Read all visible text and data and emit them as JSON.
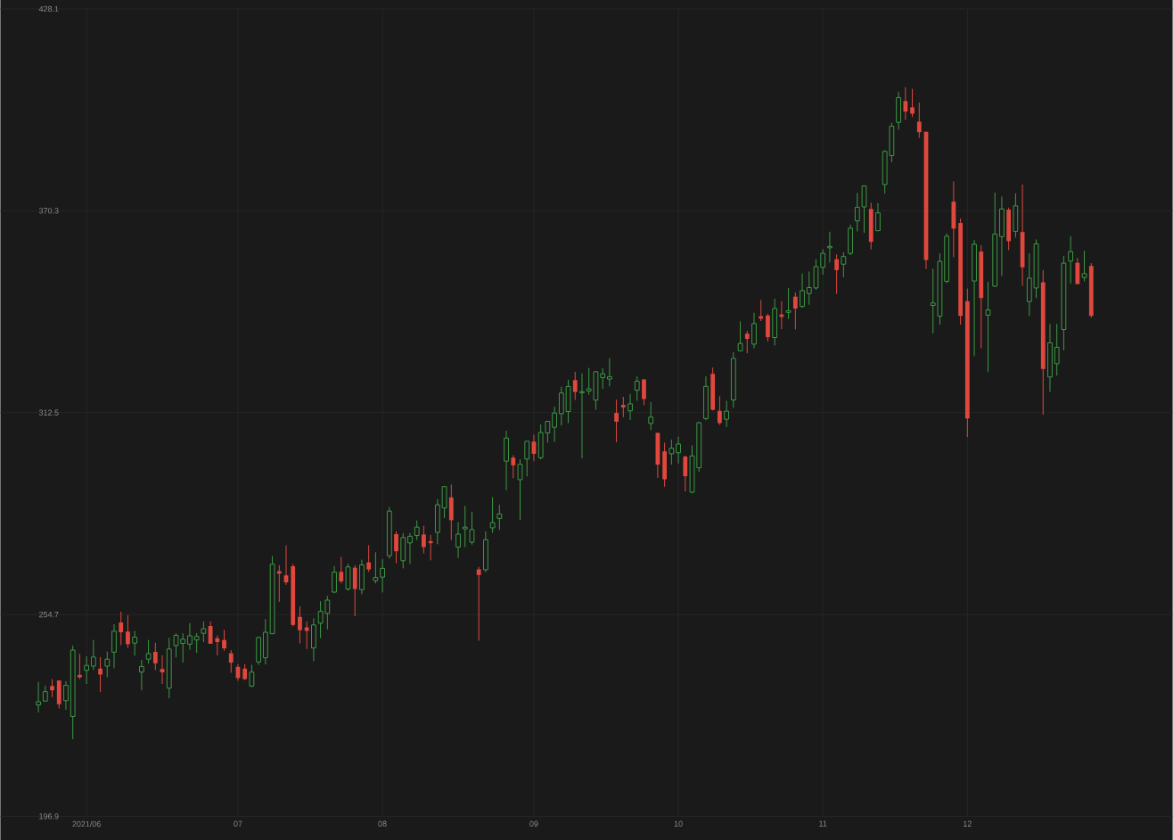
{
  "chart_data": {
    "type": "candlestick",
    "categories": [
      null,
      null,
      null,
      null,
      null,
      null,
      null,
      "2021/06",
      null,
      null,
      null,
      null,
      null,
      null,
      null,
      null,
      null,
      null,
      null,
      null,
      null,
      null,
      null,
      null,
      null,
      null,
      null,
      null,
      null,
      "07",
      null,
      null,
      null,
      null,
      null,
      null,
      null,
      null,
      null,
      null,
      null,
      null,
      null,
      null,
      null,
      null,
      null,
      null,
      null,
      null,
      "08",
      null,
      null,
      null,
      null,
      null,
      null,
      null,
      null,
      null,
      null,
      null,
      null,
      null,
      null,
      null,
      null,
      null,
      null,
      null,
      null,
      null,
      "09",
      null,
      null,
      null,
      null,
      null,
      null,
      null,
      null,
      null,
      null,
      null,
      null,
      null,
      null,
      null,
      null,
      null,
      null,
      null,
      null,
      "10",
      null,
      null,
      null,
      null,
      null,
      null,
      null,
      null,
      null,
      null,
      null,
      null,
      null,
      null,
      null,
      null,
      null,
      null,
      null,
      null,
      "11",
      null,
      null,
      null,
      null,
      null,
      null,
      null,
      null,
      null,
      null,
      null,
      null,
      null,
      null,
      null,
      null,
      null,
      null,
      null,
      null,
      "12",
      null,
      null,
      null,
      null,
      null,
      null,
      null,
      null,
      null,
      null,
      null,
      null,
      null,
      null,
      null,
      null,
      null,
      null
    ],
    "ohlc": [
      [
        228.8,
        235.4,
        226.6,
        229.7
      ],
      [
        229.9,
        234.3,
        229.9,
        232.6
      ],
      [
        234.2,
        236.2,
        231.0,
        233.0
      ],
      [
        235.8,
        235.8,
        227.8,
        229.0
      ],
      [
        230.0,
        235.6,
        227.4,
        234.4
      ],
      [
        225.5,
        245.8,
        219.0,
        244.5
      ],
      [
        237.4,
        243.4,
        236.2,
        236.7
      ],
      [
        238.7,
        242.7,
        234.8,
        240.1
      ],
      [
        239.9,
        247.4,
        238.8,
        242.5
      ],
      [
        239.2,
        242.5,
        232.5,
        237.5
      ],
      [
        239.9,
        244.1,
        236.7,
        241.9
      ],
      [
        243.9,
        251.9,
        239.3,
        249.9
      ],
      [
        252.4,
        255.5,
        245.9,
        249.6
      ],
      [
        249.8,
        254.5,
        245.1,
        246.2
      ],
      [
        246.5,
        250.0,
        242.9,
        248.2
      ],
      [
        238.2,
        241.7,
        233.0,
        239.8
      ],
      [
        241.9,
        247.4,
        240.6,
        243.5
      ],
      [
        244.0,
        246.6,
        238.8,
        240.7
      ],
      [
        239.1,
        243.0,
        234.8,
        238.1
      ],
      [
        233.6,
        248.0,
        230.7,
        244.8
      ],
      [
        245.8,
        249.3,
        242.4,
        248.7
      ],
      [
        246.4,
        249.3,
        240.9,
        247.6
      ],
      [
        246.2,
        252.2,
        244.6,
        248.6
      ],
      [
        247.4,
        249.4,
        243.7,
        248.4
      ],
      [
        249.3,
        252.7,
        246.8,
        250.6
      ],
      [
        251.4,
        252.7,
        246.3,
        246.3
      ],
      [
        247.9,
        248.7,
        243.0,
        246.8
      ],
      [
        247.4,
        250.3,
        244.3,
        245.0
      ],
      [
        243.6,
        244.5,
        238.0,
        240.9
      ],
      [
        239.7,
        240.5,
        235.7,
        236.5
      ],
      [
        239.2,
        240.5,
        235.9,
        236.2
      ],
      [
        234.2,
        240.3,
        233.9,
        238.2
      ],
      [
        241.1,
        248.4,
        240.3,
        248.1
      ],
      [
        242.3,
        253.4,
        240.4,
        249.6
      ],
      [
        249.2,
        271.4,
        249.2,
        269.1
      ],
      [
        267.1,
        268.8,
        258.3,
        266.4
      ],
      [
        265.9,
        274.5,
        263.2,
        263.9
      ],
      [
        268.5,
        269.2,
        251.3,
        251.7
      ],
      [
        254.0,
        257.0,
        246.4,
        250.2
      ],
      [
        251.0,
        252.7,
        244.8,
        250.0
      ],
      [
        245.1,
        253.6,
        241.3,
        251.7
      ],
      [
        252.2,
        258.5,
        247.9,
        255.6
      ],
      [
        255.0,
        260.0,
        250.4,
        258.8
      ],
      [
        261.1,
        268.6,
        260.8,
        266.8
      ],
      [
        266.9,
        271.2,
        263.6,
        264.2
      ],
      [
        262.0,
        269.2,
        261.5,
        268.3
      ],
      [
        268.1,
        268.8,
        254.2,
        262.0
      ],
      [
        261.8,
        270.4,
        260.5,
        268.9
      ],
      [
        269.6,
        274.5,
        266.9,
        267.6
      ],
      [
        264.4,
        272.5,
        263.6,
        265.3
      ],
      [
        265.4,
        270.6,
        261.0,
        267.9
      ],
      [
        271.5,
        285.5,
        270.7,
        284.3
      ],
      [
        277.7,
        278.5,
        269.4,
        272.8
      ],
      [
        270.1,
        278.0,
        267.9,
        276.7
      ],
      [
        275.2,
        278.0,
        269.2,
        277.1
      ],
      [
        277.3,
        281.6,
        276.0,
        279.7
      ],
      [
        277.6,
        280.1,
        272.2,
        274.0
      ],
      [
        275.7,
        277.5,
        270.2,
        275.1
      ],
      [
        278.2,
        287.7,
        274.8,
        286.1
      ],
      [
        285.2,
        291.5,
        282.3,
        291.3
      ],
      [
        288.2,
        291.9,
        276.0,
        281.7
      ],
      [
        274.0,
        281.1,
        270.9,
        277.7
      ],
      [
        279.2,
        285.8,
        274.0,
        279.7
      ],
      [
        275.4,
        284.1,
        274.7,
        279.0
      ],
      [
        267.6,
        268.3,
        247.2,
        266.0
      ],
      [
        267.5,
        278.5,
        266.8,
        276.1
      ],
      [
        279.5,
        288.3,
        278.1,
        281.0
      ],
      [
        282.2,
        286.1,
        278.9,
        283.5
      ],
      [
        298.6,
        307.3,
        290.3,
        305.2
      ],
      [
        299.6,
        300.3,
        293.7,
        297.4
      ],
      [
        293.3,
        299.1,
        281.8,
        297.7
      ],
      [
        299.2,
        304.3,
        294.2,
        304.3
      ],
      [
        304.2,
        306.2,
        298.6,
        300.7
      ],
      [
        299.6,
        309.1,
        299.1,
        306.8
      ],
      [
        306.7,
        310.0,
        303.9,
        310.0
      ],
      [
        308.3,
        314.2,
        304.1,
        312.4
      ],
      [
        312.2,
        319.9,
        308.8,
        318.1
      ],
      [
        312.8,
        321.9,
        309.5,
        320.0
      ],
      [
        321.8,
        324.2,
        316.1,
        318.4
      ],
      [
        318.2,
        323.7,
        299.4,
        318.5
      ],
      [
        318.7,
        325.3,
        317.6,
        319.3
      ],
      [
        316.1,
        324.4,
        313.3,
        324.2
      ],
      [
        322.5,
        325.2,
        319.3,
        323.6
      ],
      [
        322.1,
        328.1,
        320.0,
        322.8
      ],
      [
        312.4,
        316.2,
        304.0,
        309.9
      ],
      [
        314.7,
        317.0,
        311.2,
        314.0
      ],
      [
        313.0,
        317.8,
        310.4,
        315.0
      ],
      [
        318.9,
        322.9,
        315.9,
        321.5
      ],
      [
        322.0,
        322.1,
        314.6,
        316.4
      ],
      [
        309.4,
        315.5,
        307.5,
        311.2
      ],
      [
        306.7,
        306.7,
        293.8,
        297.6
      ],
      [
        301.4,
        303.9,
        291.3,
        293.4
      ],
      [
        300.7,
        304.8,
        297.6,
        302.3
      ],
      [
        301.0,
        305.6,
        297.9,
        303.5
      ],
      [
        299.9,
        300.2,
        289.9,
        294.3
      ],
      [
        289.7,
        303.1,
        289.4,
        300.1
      ],
      [
        296.7,
        309.8,
        295.5,
        309.6
      ],
      [
        310.8,
        322.9,
        310.3,
        320.0
      ],
      [
        323.6,
        325.4,
        313.1,
        313.3
      ],
      [
        313.0,
        317.2,
        309.0,
        309.5
      ],
      [
        310.6,
        315.9,
        308.4,
        312.9
      ],
      [
        316.1,
        329.8,
        313.9,
        328.0
      ],
      [
        330.2,
        338.6,
        330.0,
        332.3
      ],
      [
        335.1,
        335.9,
        329.5,
        333.6
      ],
      [
        332.1,
        341.1,
        330.9,
        338.0
      ],
      [
        340.1,
        344.7,
        338.7,
        339.4
      ],
      [
        340.3,
        340.8,
        332.9,
        334.1
      ],
      [
        334.0,
        345.1,
        331.7,
        342.3
      ],
      [
        340.6,
        344.4,
        336.4,
        339.9
      ],
      [
        341.2,
        348.2,
        339.3,
        341.7
      ],
      [
        345.7,
        346.9,
        336.3,
        342.3
      ],
      [
        342.9,
        352.3,
        342.5,
        347.4
      ],
      [
        346.6,
        352.9,
        343.4,
        348.3
      ],
      [
        348.2,
        356.4,
        347.7,
        354.3
      ],
      [
        354.1,
        359.3,
        352.0,
        358.1
      ],
      [
        359.7,
        364.3,
        355.5,
        360.1
      ],
      [
        356.4,
        357.8,
        346.5,
        353.3
      ],
      [
        355.0,
        358.4,
        351.3,
        357.2
      ],
      [
        358.1,
        366.3,
        357.6,
        365.3
      ],
      [
        367.4,
        375.4,
        364.4,
        371.3
      ],
      [
        371.4,
        377.6,
        364.0,
        377.4
      ],
      [
        370.8,
        372.6,
        359.2,
        361.4
      ],
      [
        364.6,
        372.5,
        364.6,
        369.7
      ],
      [
        377.8,
        387.6,
        375.2,
        387.3
      ],
      [
        386.1,
        395.5,
        384.2,
        394.5
      ],
      [
        395.6,
        404.4,
        393.5,
        402.7
      ],
      [
        401.7,
        405.7,
        396.3,
        398.7
      ],
      [
        399.9,
        405.2,
        397.1,
        398.1
      ],
      [
        395.8,
        401.3,
        391.2,
        392.8
      ],
      [
        392.9,
        392.9,
        353.6,
        356.2
      ],
      [
        343.2,
        353.7,
        335.2,
        343.9
      ],
      [
        340.1,
        358.1,
        337.7,
        355.8
      ],
      [
        350.1,
        363.8,
        349.6,
        363.0
      ],
      [
        372.9,
        378.7,
        357.0,
        365.2
      ],
      [
        366.8,
        368.1,
        337.7,
        340.2
      ],
      [
        344.4,
        348.0,
        305.5,
        310.8
      ],
      [
        350.2,
        361.9,
        328.7,
        360.7
      ],
      [
        358.6,
        360.4,
        330.9,
        345.3
      ],
      [
        340.4,
        350.0,
        324.1,
        341.9
      ],
      [
        348.7,
        375.5,
        348.5,
        363.6
      ],
      [
        362.9,
        374.4,
        351.6,
        370.8
      ],
      [
        370.6,
        371.2,
        359.0,
        361.6
      ],
      [
        364.4,
        375.3,
        362.6,
        371.7
      ],
      [
        364.2,
        377.8,
        348.8,
        354.1
      ],
      [
        344.3,
        358.1,
        340.2,
        351.0
      ],
      [
        348.2,
        362.1,
        345.3,
        360.8
      ],
      [
        349.8,
        353.3,
        311.9,
        325.0
      ],
      [
        322.7,
        337.9,
        318.4,
        332.5
      ],
      [
        326.5,
        337.9,
        323.1,
        331.2
      ],
      [
        336.3,
        357.4,
        330.3,
        355.3
      ],
      [
        355.9,
        363.0,
        349.4,
        358.6
      ],
      [
        355.4,
        356.8,
        349.3,
        349.3
      ],
      [
        351.2,
        358.8,
        350.1,
        352.3
      ],
      [
        354.5,
        355.3,
        339.7,
        340.2
      ]
    ],
    "colors": [
      "#3c9a44",
      "#3c9a44",
      "#e0483e",
      "#e0483e",
      "#3c9a44",
      "#3c9a44",
      "#e0483e",
      "#3c9a44",
      "#3c9a44",
      "#e0483e",
      "#3c9a44",
      "#3c9a44",
      "#e0483e",
      "#e0483e",
      "#3c9a44",
      "#3c9a44",
      "#3c9a44",
      "#e0483e",
      "#e0483e",
      "#3c9a44",
      "#3c9a44",
      "#3c9a44",
      "#3c9a44",
      "#3c9a44",
      "#3c9a44",
      "#e0483e",
      "#e0483e",
      "#e0483e",
      "#e0483e",
      "#e0483e",
      "#e0483e",
      "#3c9a44",
      "#3c9a44",
      "#3c9a44",
      "#3c9a44",
      "#e0483e",
      "#e0483e",
      "#e0483e",
      "#e0483e",
      "#e0483e",
      "#3c9a44",
      "#3c9a44",
      "#3c9a44",
      "#3c9a44",
      "#e0483e",
      "#3c9a44",
      "#e0483e",
      "#3c9a44",
      "#e0483e",
      "#3c9a44",
      "#3c9a44",
      "#3c9a44",
      "#e0483e",
      "#3c9a44",
      "#3c9a44",
      "#3c9a44",
      "#e0483e",
      "#e0483e",
      "#3c9a44",
      "#3c9a44",
      "#e0483e",
      "#3c9a44",
      "#3c9a44",
      "#3c9a44",
      "#e0483e",
      "#3c9a44",
      "#3c9a44",
      "#3c9a44",
      "#3c9a44",
      "#e0483e",
      "#3c9a44",
      "#3c9a44",
      "#e0483e",
      "#3c9a44",
      "#3c9a44",
      "#3c9a44",
      "#3c9a44",
      "#3c9a44",
      "#e0483e",
      "#3c9a44",
      "#3c9a44",
      "#3c9a44",
      "#3c9a44",
      "#3c9a44",
      "#e0483e",
      "#e0483e",
      "#3c9a44",
      "#3c9a44",
      "#e0483e",
      "#3c9a44",
      "#e0483e",
      "#e0483e",
      "#3c9a44",
      "#3c9a44",
      "#e0483e",
      "#3c9a44",
      "#3c9a44",
      "#3c9a44",
      "#e0483e",
      "#e0483e",
      "#3c9a44",
      "#3c9a44",
      "#3c9a44",
      "#e0483e",
      "#3c9a44",
      "#e0483e",
      "#e0483e",
      "#3c9a44",
      "#e0483e",
      "#3c9a44",
      "#e0483e",
      "#3c9a44",
      "#3c9a44",
      "#3c9a44",
      "#3c9a44",
      "#3c9a44",
      "#e0483e",
      "#3c9a44",
      "#3c9a44",
      "#3c9a44",
      "#3c9a44",
      "#e0483e",
      "#3c9a44",
      "#3c9a44",
      "#3c9a44",
      "#3c9a44",
      "#e0483e",
      "#e0483e",
      "#e0483e",
      "#e0483e",
      "#3c9a44",
      "#3c9a44",
      "#3c9a44",
      "#e0483e",
      "#e0483e",
      "#e0483e",
      "#3c9a44",
      "#e0483e",
      "#3c9a44",
      "#3c9a44",
      "#3c9a44",
      "#e0483e",
      "#3c9a44",
      "#e0483e",
      "#3c9a44",
      "#3c9a44",
      "#e0483e",
      "#3c9a44",
      "#3c9a44",
      "#3c9a44",
      "#3c9a44",
      "#e0483e",
      "#3c9a44",
      "#e0483e"
    ],
    "ylim": [
      196.9,
      428.1
    ],
    "yticks": [
      196.9,
      254.7,
      312.5,
      370.3,
      428.1
    ],
    "grid": true
  }
}
